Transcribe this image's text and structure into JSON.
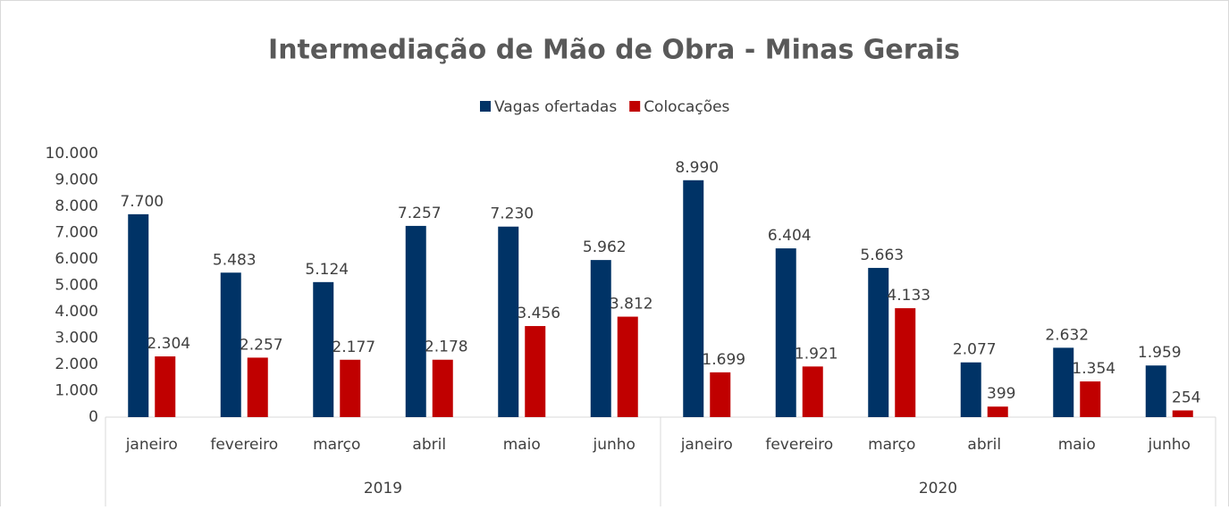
{
  "chart_data": {
    "type": "bar",
    "title": "Intermediação de Mão de Obra - Minas Gerais",
    "categories": [
      "janeiro",
      "fevereiro",
      "março",
      "abril",
      "maio",
      "junho",
      "janeiro",
      "fevereiro",
      "março",
      "abril",
      "maio",
      "junho"
    ],
    "groups": [
      "2019",
      "2020"
    ],
    "series": [
      {
        "name": "Vagas ofertadas",
        "color": "#003366",
        "values": [
          7700,
          5483,
          5124,
          7257,
          7230,
          5962,
          8990,
          6404,
          5663,
          2077,
          2632,
          1959
        ],
        "value_labels": [
          "7.700",
          "5.483",
          "5.124",
          "7.257",
          "7.230",
          "5.962",
          "8.990",
          "6.404",
          "5.663",
          "2.077",
          "2.632",
          "1.959"
        ]
      },
      {
        "name": "Colocações",
        "color": "#c00000",
        "values": [
          2304,
          2257,
          2177,
          2178,
          3456,
          3812,
          1699,
          1921,
          4133,
          399,
          1354,
          254
        ],
        "value_labels": [
          "2.304",
          "2.257",
          "2.177",
          "2.178",
          "3.456",
          "3.812",
          "1.699",
          "1.921",
          "4.133",
          "399",
          "1.354",
          "254"
        ]
      }
    ],
    "ylim": [
      0,
      10000
    ],
    "yticks": [
      0,
      {
        "value": 1000,
        "label": "1.000"
      },
      {
        "value": 2000,
        "label": "2.000"
      },
      {
        "value": 3000,
        "label": "3.000"
      },
      {
        "value": 4000,
        "label": "4.000"
      },
      {
        "value": 5000,
        "label": "5.000"
      },
      {
        "value": 6000,
        "label": "6.000"
      },
      {
        "value": 7000,
        "label": "7.000"
      },
      {
        "value": 8000,
        "label": "8.000"
      },
      {
        "value": 9000,
        "label": "9.000"
      },
      {
        "value": 10000,
        "label": "10.000"
      }
    ],
    "legend": "top"
  }
}
